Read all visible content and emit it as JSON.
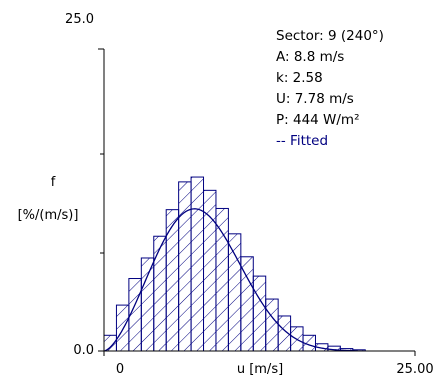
{
  "chart_data": {
    "type": "bar",
    "title": "",
    "xlabel": "u [m/s]",
    "ylabel_line1": "f",
    "ylabel_line2": "[%/(m/s)]",
    "xlim": [
      0,
      25
    ],
    "ylim": [
      0,
      25
    ],
    "x_tick_labels": [
      "0",
      "25.00"
    ],
    "y_tick_labels": [
      "0.0",
      "25.0"
    ],
    "bin_width": 1,
    "bins_x": [
      0,
      1,
      2,
      3,
      4,
      5,
      6,
      7,
      8,
      9,
      10,
      11,
      12,
      13,
      14,
      15,
      16,
      17,
      18,
      19,
      20,
      21,
      22,
      23,
      24
    ],
    "bins_values": [
      1.3,
      3.8,
      6.0,
      7.7,
      9.5,
      11.7,
      14.0,
      14.4,
      13.3,
      11.8,
      9.7,
      7.8,
      6.2,
      4.3,
      2.9,
      2.0,
      1.3,
      0.6,
      0.4,
      0.2,
      0.1,
      0,
      0,
      0,
      0
    ],
    "fit": {
      "name": "Fitted",
      "distribution": "weibull",
      "A": 8.8,
      "k": 2.58
    },
    "grid": false,
    "legend_position": "top-right",
    "colors": {
      "bars_hatch": "#000080",
      "fit_line": "#000080",
      "axes": "#000000"
    }
  },
  "legend": {
    "lines": [
      "Sector: 9 (240°)",
      "A: 8.8 m/s",
      "k: 2.58",
      "U: 7.78 m/s",
      "P: 444 W/m²"
    ],
    "fitted_label": "-- Fitted"
  }
}
